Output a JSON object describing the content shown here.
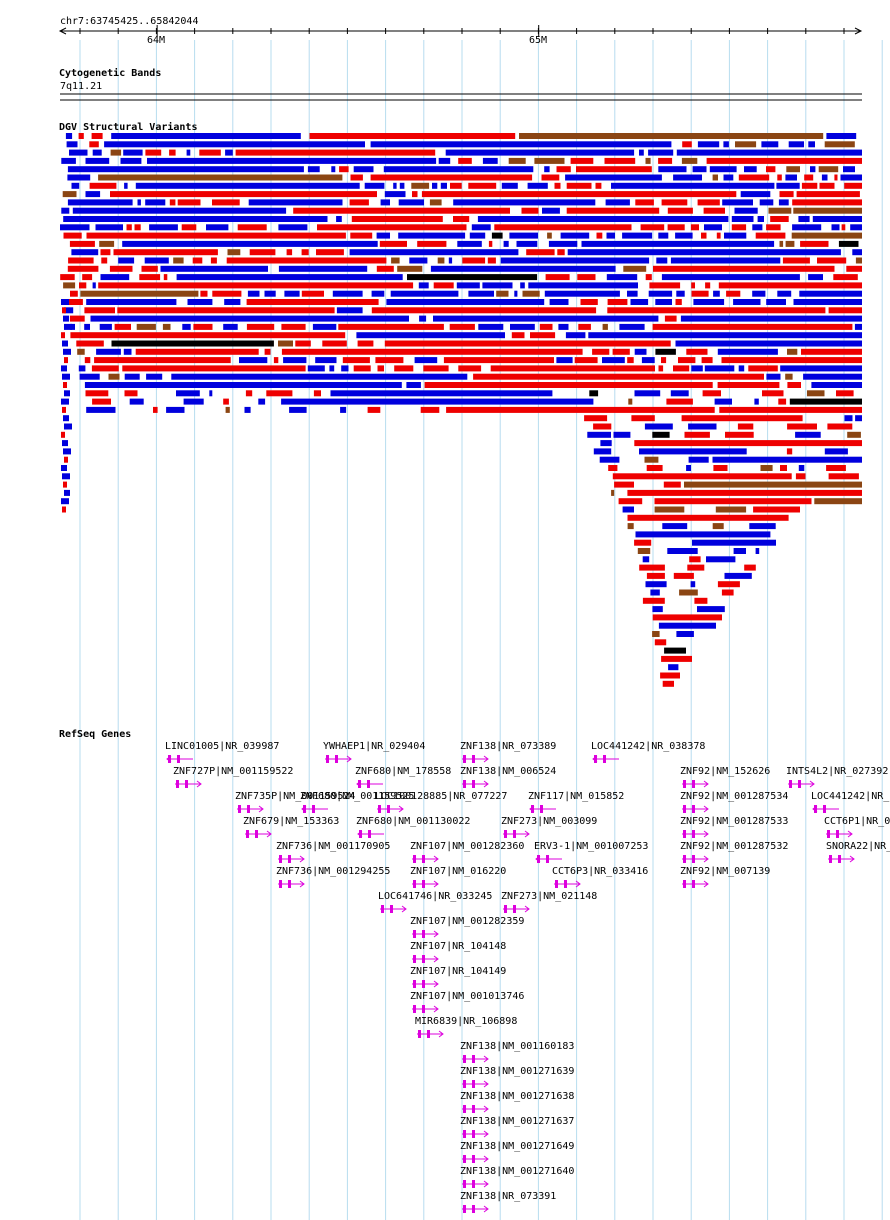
{
  "position_label": "chr7:63745425..65842044",
  "ruler": {
    "start": 63745425,
    "end": 65842044,
    "ticks": [
      {
        "label": "64M",
        "pos": 64000000
      },
      {
        "label": "65M",
        "pos": 65000000
      }
    ]
  },
  "tracks": {
    "cytoband": {
      "title": "Cytogenetic Bands",
      "band": "7q11.21"
    },
    "dgv": {
      "title": "DGV Structural Variants"
    },
    "refseq": {
      "title": "RefSeq Genes"
    }
  },
  "colors": {
    "gain": "#0000dd",
    "loss": "#ee0000",
    "gain_loss": "#8b4513",
    "other": "#000000",
    "gene": "#dd00dd",
    "grid": "#b7dcef"
  },
  "genes": [
    {
      "label": "LINC01005|NR_039987",
      "strand": "-"
    },
    {
      "label": "YWHAEP1|NR_029404",
      "strand": "+"
    },
    {
      "label": "ZNF138|NR_073389",
      "strand": "+"
    },
    {
      "label": "LOC441242|NR_038378",
      "strand": "-"
    },
    {
      "label": "ZNF727P|NM_001159522",
      "strand": "+"
    },
    {
      "label": "ZNF680|NM_178558",
      "strand": "-"
    },
    {
      "label": "ZNF138|NM_006524",
      "strand": "+"
    },
    {
      "label": "ZNF92|NM_152626",
      "strand": "+"
    },
    {
      "label": "INTS4L2|NR_027392",
      "strand": "+"
    },
    {
      "label": "ZNF735P|NM_001159524",
      "strand": "+"
    },
    {
      "label": "ZNF680|NM_001159525",
      "strand": "-"
    },
    {
      "label": "LOC100128885|NR_077227",
      "strand": "+"
    },
    {
      "label": "ZNF117|NM_015852",
      "strand": "-"
    },
    {
      "label": "ZNF92|NM_001287534",
      "strand": "+"
    },
    {
      "label": "LOC441242|NR_",
      "strand": "-"
    },
    {
      "label": "ZNF679|NM_153363",
      "strand": "+"
    },
    {
      "label": "ZNF680|NM_001130022",
      "strand": "-"
    },
    {
      "label": "ZNF273|NM_003099",
      "strand": "+"
    },
    {
      "label": "ZNF92|NM_001287533",
      "strand": "+"
    },
    {
      "label": "CCT6P1|NR_0",
      "strand": "+"
    },
    {
      "label": "ZNF736|NM_001170905",
      "strand": "+"
    },
    {
      "label": "ZNF107|NM_001282360",
      "strand": "+"
    },
    {
      "label": "ERV3-1|NM_001007253",
      "strand": "-"
    },
    {
      "label": "ZNF92|NM_001287532",
      "strand": "+"
    },
    {
      "label": "SNORA22|NR_",
      "strand": "+"
    },
    {
      "label": "ZNF736|NM_001294255",
      "strand": "+"
    },
    {
      "label": "ZNF107|NM_016220",
      "strand": "+"
    },
    {
      "label": "CCT6P3|NR_033416",
      "strand": "+"
    },
    {
      "label": "ZNF92|NM_007139",
      "strand": "+"
    },
    {
      "label": "LOC641746|NR_033245",
      "strand": "+"
    },
    {
      "label": "ZNF273|NM_021148",
      "strand": "+"
    },
    {
      "label": "ZNF107|NM_001282359",
      "strand": "+"
    },
    {
      "label": "ZNF107|NR_104148",
      "strand": "+"
    },
    {
      "label": "ZNF107|NR_104149",
      "strand": "+"
    },
    {
      "label": "ZNF107|NM_001013746",
      "strand": "+"
    },
    {
      "label": "MIR6839|NR_106898",
      "strand": "+"
    },
    {
      "label": "ZNF138|NM_001160183",
      "strand": "+"
    },
    {
      "label": "ZNF138|NM_001271639",
      "strand": "+"
    },
    {
      "label": "ZNF138|NM_001271638",
      "strand": "+"
    },
    {
      "label": "ZNF138|NM_001271637",
      "strand": "+"
    },
    {
      "label": "ZNF138|NM_001271649",
      "strand": "+"
    },
    {
      "label": "ZNF138|NM_001271640",
      "strand": "+"
    },
    {
      "label": "ZNF138|NR_073391",
      "strand": "+"
    }
  ]
}
